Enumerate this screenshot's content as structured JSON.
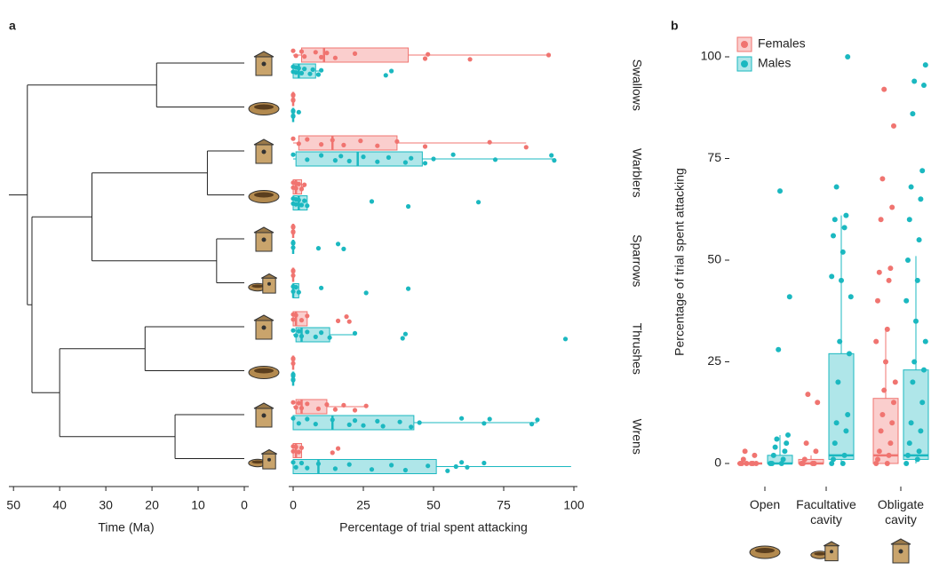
{
  "chart_data": [
    {
      "type": "tree",
      "label": "a",
      "xlabel": "Time (Ma)",
      "xlim": [
        51,
        0
      ],
      "xticks": [
        50,
        40,
        30,
        20,
        10,
        0
      ],
      "tree": {
        "age": 47,
        "children": [
          {
            "age": 19,
            "children": [
              {
                "age": 0
              },
              {
                "age": 0
              }
            ]
          },
          {
            "age": 46,
            "children": [
              {
                "age": 33,
                "children": [
                  {
                    "age": 8,
                    "children": [
                      {
                        "age": 0
                      },
                      {
                        "age": 0
                      }
                    ]
                  },
                  {
                    "age": 6,
                    "children": [
                      {
                        "age": 0
                      },
                      {
                        "age": 0
                      }
                    ]
                  }
                ]
              },
              {
                "age": 40,
                "children": [
                  {
                    "age": 21.5,
                    "children": [
                      {
                        "age": 0
                      },
                      {
                        "age": 0
                      }
                    ]
                  },
                  {
                    "age": 15,
                    "children": [
                      {
                        "age": 0
                      },
                      {
                        "age": 0
                      }
                    ]
                  }
                ]
              }
            ]
          }
        ]
      }
    },
    {
      "type": "box",
      "xlabel": "Percentage of trial spent attacking",
      "xlim": [
        0,
        100
      ],
      "xticks": [
        0,
        25,
        50,
        75,
        100
      ],
      "groups": [
        "Swallows",
        "Warblers",
        "Sparrows",
        "Thrushes",
        "Wrens"
      ],
      "rows": [
        {
          "nest": 2,
          "stats": [
            {
              "min": 0,
              "q1": 3,
              "median": 11,
              "q3": 41,
              "max": 91,
              "points": [
                0,
                1,
                3,
                4,
                8,
                10,
                12,
                15,
                22,
                47,
                48,
                63,
                91
              ]
            },
            {
              "min": 0,
              "q1": 0,
              "median": 2,
              "q3": 8,
              "max": 10,
              "points": [
                0,
                0,
                1,
                1,
                2,
                3,
                4,
                6,
                7,
                9,
                10,
                33,
                35
              ]
            }
          ]
        },
        {
          "nest": 0,
          "stats": [
            {
              "min": 0,
              "q1": 0,
              "median": 0,
              "q3": 0,
              "max": 0,
              "points": [
                0,
                0,
                0,
                0
              ]
            },
            {
              "min": 0,
              "q1": 0,
              "median": 0,
              "q3": 0,
              "max": 0,
              "points": [
                0,
                0,
                0,
                0,
                2
              ]
            }
          ]
        },
        {
          "nest": 2,
          "stats": [
            {
              "min": 0,
              "q1": 2,
              "median": 14,
              "q3": 37,
              "max": 83,
              "points": [
                0,
                2,
                5,
                10,
                14,
                18,
                24,
                30,
                37,
                47,
                70,
                83
              ]
            },
            {
              "min": 0,
              "q1": 1,
              "median": 23,
              "q3": 46,
              "max": 93,
              "points": [
                0,
                5,
                10,
                15,
                17,
                20,
                25,
                30,
                34,
                40,
                42,
                47,
                50,
                57,
                72,
                92,
                93
              ]
            }
          ]
        },
        {
          "nest": 0,
          "stats": [
            {
              "min": 0,
              "q1": 0,
              "median": 1,
              "q3": 3,
              "max": 4,
              "points": [
                0,
                0,
                1,
                1,
                2,
                3,
                4
              ]
            },
            {
              "min": 0,
              "q1": 0,
              "median": 2,
              "q3": 5,
              "max": 5,
              "points": [
                0,
                0,
                1,
                1,
                2,
                3,
                4,
                5,
                28,
                41,
                66
              ]
            }
          ]
        },
        {
          "nest": 2,
          "stats": [
            {
              "min": 0,
              "q1": 0,
              "median": 0,
              "q3": 0,
              "max": 0,
              "points": [
                0,
                0,
                0,
                0
              ]
            },
            {
              "min": 0,
              "q1": 0,
              "median": 0,
              "q3": 0,
              "max": 0,
              "points": [
                0,
                0,
                0,
                9,
                16,
                18
              ]
            }
          ]
        },
        {
          "nest": 1,
          "stats": [
            {
              "min": 0,
              "q1": 0,
              "median": 0,
              "q3": 0,
              "max": 0,
              "points": [
                0,
                0,
                0
              ]
            },
            {
              "min": 0,
              "q1": 0,
              "median": 0,
              "q3": 2,
              "max": 2,
              "points": [
                0,
                0,
                1,
                2,
                10,
                26,
                41
              ]
            }
          ]
        },
        {
          "nest": 2,
          "stats": [
            {
              "min": 0,
              "q1": 0,
              "median": 1,
              "q3": 5,
              "max": 5,
              "points": [
                0,
                0,
                1,
                3,
                5,
                16,
                19,
                20
              ]
            },
            {
              "min": 0,
              "q1": 1,
              "median": 3,
              "q3": 13,
              "max": 22,
              "points": [
                0,
                1,
                2,
                3,
                5,
                8,
                10,
                13,
                22,
                39,
                40,
                97
              ]
            }
          ]
        },
        {
          "nest": 0,
          "stats": [
            {
              "min": 0,
              "q1": 0,
              "median": 0,
              "q3": 0,
              "max": 0,
              "points": [
                0,
                0,
                0
              ]
            },
            {
              "min": 0,
              "q1": 0,
              "median": 0,
              "q3": 0,
              "max": 0,
              "points": [
                0,
                0,
                0,
                0,
                0
              ]
            }
          ]
        },
        {
          "nest": 2,
          "stats": [
            {
              "min": 0,
              "q1": 1,
              "median": 3,
              "q3": 12,
              "max": 26,
              "points": [
                0,
                1,
                2,
                3,
                5,
                9,
                12,
                15,
                18,
                22,
                26
              ]
            },
            {
              "min": 0,
              "q1": 0,
              "median": 14,
              "q3": 43,
              "max": 87,
              "points": [
                0,
                2,
                5,
                8,
                14,
                20,
                22,
                25,
                30,
                32,
                38,
                42,
                45,
                60,
                68,
                70,
                85,
                87
              ]
            }
          ]
        },
        {
          "nest": 1,
          "stats": [
            {
              "min": 0,
              "q1": 0,
              "median": 1,
              "q3": 3,
              "max": 3,
              "points": [
                0,
                0,
                1,
                2,
                3,
                14,
                16
              ]
            },
            {
              "min": 0,
              "q1": 0,
              "median": 9,
              "q3": 51,
              "max": 99,
              "points": [
                0,
                1,
                3,
                5,
                9,
                15,
                20,
                28,
                35,
                40,
                48,
                55,
                58,
                60,
                62,
                68
              ]
            }
          ]
        }
      ]
    },
    {
      "type": "box",
      "label": "b",
      "ylabel": "Percentage of trial spent attacking",
      "ylim": [
        0,
        100
      ],
      "yticks": [
        0,
        25,
        50,
        75,
        100
      ],
      "legend": "upper left",
      "categories": [
        "Open",
        "Facultative cavity",
        "Obligate cavity"
      ],
      "series": [
        {
          "name": "Females",
          "color": "#f07470",
          "stats": [
            {
              "min": 0,
              "q1": 0,
              "median": 0,
              "q3": 0,
              "max": 0,
              "points": [
                0,
                0,
                0,
                0,
                1,
                2,
                3,
                0,
                0
              ]
            },
            {
              "min": 0,
              "q1": 0,
              "median": 0,
              "q3": 1,
              "max": 2,
              "points": [
                0,
                0,
                0,
                0,
                1,
                3,
                5,
                15,
                17
              ]
            },
            {
              "min": 0,
              "q1": 0,
              "median": 2,
              "q3": 16,
              "max": 33,
              "points": [
                0,
                0,
                1,
                2,
                3,
                5,
                8,
                10,
                12,
                15,
                18,
                20,
                25,
                30,
                33,
                40,
                45,
                47,
                48,
                60,
                63,
                70,
                83,
                92
              ]
            }
          ]
        },
        {
          "name": "Males",
          "color": "#1bb8c0",
          "stats": [
            {
              "min": 0,
              "q1": 0,
              "median": 0,
              "q3": 2,
              "max": 7,
              "points": [
                0,
                0,
                0,
                1,
                2,
                3,
                4,
                5,
                6,
                7,
                28,
                41,
                67
              ]
            },
            {
              "min": 0,
              "q1": 1,
              "median": 2,
              "q3": 27,
              "max": 61,
              "points": [
                0,
                0,
                1,
                2,
                5,
                8,
                10,
                12,
                20,
                27,
                30,
                41,
                45,
                46,
                52,
                56,
                58,
                60,
                61,
                68,
                100
              ]
            },
            {
              "min": 0,
              "q1": 1,
              "median": 2,
              "q3": 23,
              "max": 51,
              "points": [
                0,
                1,
                2,
                3,
                5,
                8,
                10,
                15,
                20,
                23,
                25,
                30,
                35,
                40,
                45,
                50,
                55,
                60,
                65,
                68,
                72,
                86,
                93,
                94,
                98
              ]
            }
          ]
        }
      ]
    }
  ]
}
